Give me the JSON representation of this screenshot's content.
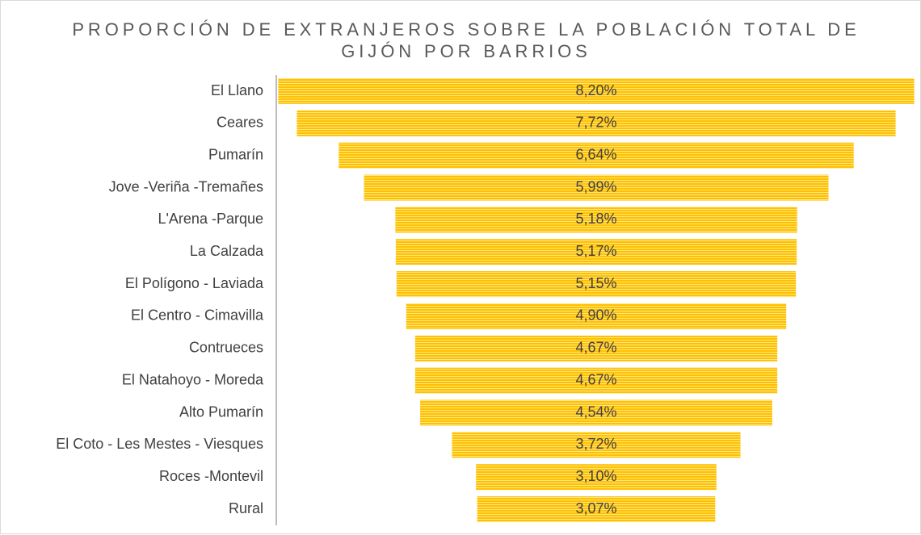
{
  "chart_data": {
    "type": "funnel",
    "title": "PROPORCIÓN DE EXTRANJEROS SOBRE LA POBLACIÓN TOTAL DE GIJÓN POR BARRIOS",
    "categories": [
      "El Llano",
      "Ceares",
      "Pumarín",
      "Jove -Veriña -Tremañes",
      "L'Arena -Parque",
      "La Calzada",
      "El Polígono - Laviada",
      "El Centro - Cimavilla",
      "Contrueces",
      "El Natahoyo - Moreda",
      "Alto Pumarín",
      "El Coto - Les Mestes - Viesques",
      "Roces -Montevil",
      "Rural"
    ],
    "values": [
      8.2,
      7.72,
      6.64,
      5.99,
      5.18,
      5.17,
      5.15,
      4.9,
      4.67,
      4.67,
      4.54,
      3.72,
      3.1,
      3.07
    ],
    "value_labels": [
      "8,20%",
      "7,72%",
      "6,64%",
      "5,99%",
      "5,18%",
      "5,17%",
      "5,15%",
      "4,90%",
      "4,67%",
      "4,67%",
      "4,54%",
      "3,72%",
      "3,10%",
      "3,07%"
    ],
    "color": "#ffc000"
  }
}
